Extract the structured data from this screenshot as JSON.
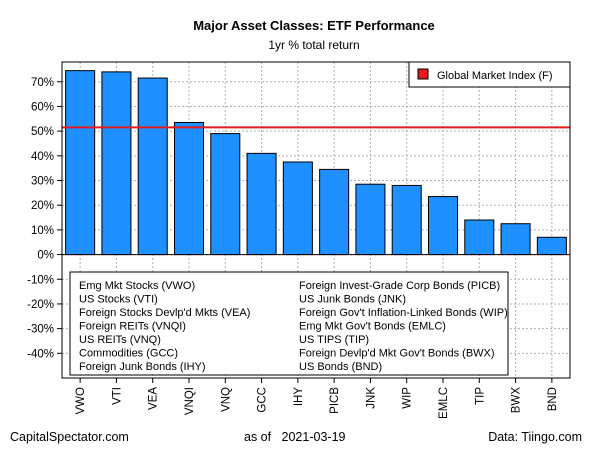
{
  "chart_data": {
    "type": "bar",
    "title": "Major Asset Classes: ETF Performance",
    "subtitle": "1yr % total return",
    "categories": [
      "VWO",
      "VTI",
      "VEA",
      "VNQI",
      "VNQ",
      "GCC",
      "IHY",
      "PICB",
      "JNK",
      "WIP",
      "EMLC",
      "TIP",
      "BWX",
      "BND"
    ],
    "values": [
      74.5,
      74.0,
      71.5,
      53.5,
      49.0,
      41.0,
      37.5,
      34.5,
      28.5,
      28.0,
      23.5,
      14.0,
      12.5,
      7.0
    ],
    "ylim": [
      -50,
      78
    ],
    "yticks": [
      -40,
      -30,
      -20,
      -10,
      0,
      10,
      20,
      30,
      40,
      50,
      60,
      70
    ],
    "ytick_labels": [
      "-40%",
      "-30%",
      "-20%",
      "-10%",
      "0%",
      "10%",
      "20%",
      "30%",
      "40%",
      "50%",
      "60%",
      "70%"
    ],
    "bar_color": "#1E90FF",
    "reference_line": {
      "name": "Global Market Index (F)",
      "value": 51.5,
      "color": "#E41A1C"
    },
    "grid": true,
    "legend_position": "top-right",
    "category_key": [
      "Emg Mkt Stocks (VWO)",
      "US Stocks (VTI)",
      "Foreign Stocks Devlp'd Mkts (VEA)",
      "Foreign REITs (VNQI)",
      "US REITs (VNQ)",
      "Commodities (GCC)",
      "Foreign Junk Bonds (IHY)",
      "Foreign Invest-Grade Corp Bonds (PICB)",
      "US Junk Bonds (JNK)",
      "Foreign Gov't Inflation-Linked Bonds (WIP)",
      "Emg Mkt Gov't Bonds (EMLC)",
      "US TIPS (TIP)",
      "Foreign Devlp'd Mkt Gov't Bonds (BWX)",
      "US Bonds (BND)"
    ]
  },
  "footer": {
    "source_left": "CapitalSpectator.com",
    "date_label": "as of",
    "date": "2021-03-19",
    "source_right": "Data: Tiingo.com"
  }
}
